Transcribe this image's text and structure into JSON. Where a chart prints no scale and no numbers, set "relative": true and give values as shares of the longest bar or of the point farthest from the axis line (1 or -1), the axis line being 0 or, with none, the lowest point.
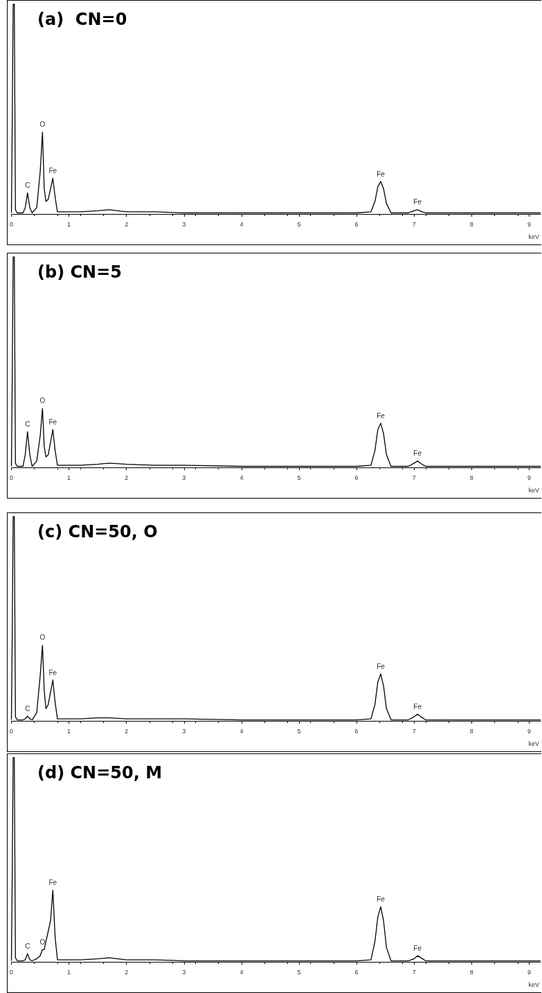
{
  "chart_data": [
    {
      "type": "line",
      "title": "(a)  CN=0",
      "xlabel": "keV",
      "relative": true,
      "color": "#000000",
      "grid": false,
      "marker": "none",
      "line_style": "solid",
      "xlim": [
        0,
        9.2
      ],
      "xticks": [
        0,
        1,
        2,
        3,
        4,
        5,
        6,
        7,
        8,
        9
      ],
      "x": [
        0,
        0.01,
        0.03,
        0.05,
        0.07,
        0.1,
        0.2,
        0.24,
        0.28,
        0.32,
        0.36,
        0.44,
        0.5,
        0.54,
        0.57,
        0.6,
        0.64,
        0.68,
        0.72,
        0.76,
        0.8,
        0.9,
        1.2,
        1.5,
        1.7,
        2,
        2.5,
        3,
        4,
        5,
        6,
        6.25,
        6.32,
        6.37,
        6.42,
        6.47,
        6.52,
        6.6,
        6.9,
        7.0,
        7.06,
        7.12,
        7.2,
        7.5,
        8,
        9,
        9.2
      ],
      "values": [
        0.005,
        0.3,
        1,
        1,
        0.02,
        0.005,
        0.005,
        0.03,
        0.1,
        0.03,
        0.005,
        0.03,
        0.2,
        0.39,
        0.12,
        0.06,
        0.07,
        0.12,
        0.17,
        0.08,
        0.01,
        0.01,
        0.01,
        0.015,
        0.02,
        0.01,
        0.01,
        0.005,
        0.005,
        0.005,
        0.005,
        0.01,
        0.06,
        0.13,
        0.155,
        0.12,
        0.05,
        0.005,
        0.005,
        0.015,
        0.02,
        0.012,
        0.005,
        0.005,
        0.005,
        0.005,
        0.005
      ],
      "annotations": [
        {
          "text": "C",
          "x": 0.28,
          "y": 0.1
        },
        {
          "text": "O",
          "x": 0.54,
          "y": 0.39
        },
        {
          "text": "Fe",
          "x": 0.72,
          "y": 0.17
        },
        {
          "text": "Fe",
          "x": 6.42,
          "y": 0.155
        },
        {
          "text": "Fe",
          "x": 7.06,
          "y": 0.02
        }
      ]
    },
    {
      "type": "line",
      "title": "(b) CN=5",
      "xlabel": "keV",
      "relative": true,
      "color": "#000000",
      "grid": false,
      "marker": "none",
      "line_style": "solid",
      "xlim": [
        0,
        9.2
      ],
      "xticks": [
        0,
        1,
        2,
        3,
        4,
        5,
        6,
        7,
        8,
        9
      ],
      "x": [
        0,
        0.01,
        0.03,
        0.05,
        0.07,
        0.1,
        0.2,
        0.24,
        0.28,
        0.32,
        0.36,
        0.44,
        0.5,
        0.54,
        0.57,
        0.6,
        0.64,
        0.68,
        0.72,
        0.76,
        0.8,
        0.9,
        1.2,
        1.5,
        1.7,
        2,
        2.5,
        3,
        4,
        5,
        6,
        6.25,
        6.32,
        6.37,
        6.42,
        6.47,
        6.52,
        6.6,
        6.9,
        7.0,
        7.06,
        7.12,
        7.2,
        7.5,
        8,
        9,
        9.2
      ],
      "values": [
        0.005,
        0.3,
        1,
        1,
        0.02,
        0.005,
        0.005,
        0.06,
        0.17,
        0.06,
        0.005,
        0.03,
        0.15,
        0.28,
        0.1,
        0.05,
        0.06,
        0.12,
        0.18,
        0.08,
        0.01,
        0.01,
        0.01,
        0.015,
        0.02,
        0.015,
        0.01,
        0.01,
        0.005,
        0.005,
        0.005,
        0.01,
        0.08,
        0.18,
        0.21,
        0.16,
        0.06,
        0.005,
        0.005,
        0.02,
        0.03,
        0.018,
        0.005,
        0.005,
        0.005,
        0.005,
        0.005
      ],
      "annotations": [
        {
          "text": "C",
          "x": 0.28,
          "y": 0.17
        },
        {
          "text": "O",
          "x": 0.54,
          "y": 0.28
        },
        {
          "text": "Fe",
          "x": 0.72,
          "y": 0.18
        },
        {
          "text": "Fe",
          "x": 6.42,
          "y": 0.21
        },
        {
          "text": "Fe",
          "x": 7.06,
          "y": 0.03
        }
      ]
    },
    {
      "type": "line",
      "title": "(c) CN=50, O",
      "xlabel": "keV",
      "relative": true,
      "color": "#000000",
      "grid": false,
      "marker": "none",
      "line_style": "solid",
      "xlim": [
        0,
        9.2
      ],
      "xticks": [
        0,
        1,
        2,
        3,
        4,
        5,
        6,
        7,
        8,
        9
      ],
      "x": [
        0,
        0.01,
        0.03,
        0.05,
        0.07,
        0.1,
        0.2,
        0.24,
        0.28,
        0.32,
        0.36,
        0.44,
        0.5,
        0.54,
        0.57,
        0.6,
        0.64,
        0.68,
        0.72,
        0.76,
        0.8,
        0.9,
        1.2,
        1.5,
        1.7,
        2,
        2.5,
        3,
        4,
        5,
        6,
        6.25,
        6.32,
        6.37,
        6.42,
        6.47,
        6.52,
        6.6,
        6.9,
        7.0,
        7.06,
        7.12,
        7.2,
        7.5,
        8,
        9,
        9.2
      ],
      "values": [
        0.005,
        0.3,
        1,
        1,
        0.02,
        0.005,
        0.005,
        0.01,
        0.023,
        0.01,
        0.005,
        0.04,
        0.22,
        0.37,
        0.15,
        0.06,
        0.08,
        0.14,
        0.2,
        0.09,
        0.01,
        0.01,
        0.01,
        0.015,
        0.015,
        0.01,
        0.01,
        0.01,
        0.005,
        0.005,
        0.005,
        0.01,
        0.08,
        0.19,
        0.23,
        0.17,
        0.06,
        0.005,
        0.005,
        0.02,
        0.033,
        0.02,
        0.005,
        0.005,
        0.005,
        0.005,
        0.005
      ],
      "annotations": [
        {
          "text": "C",
          "x": 0.28,
          "y": 0.023
        },
        {
          "text": "O",
          "x": 0.54,
          "y": 0.37
        },
        {
          "text": "Fe",
          "x": 0.72,
          "y": 0.2
        },
        {
          "text": "Fe",
          "x": 6.42,
          "y": 0.23
        },
        {
          "text": "Fe",
          "x": 7.06,
          "y": 0.033
        }
      ]
    },
    {
      "type": "line",
      "title": "(d) CN=50, M",
      "xlabel": "keV",
      "relative": true,
      "color": "#000000",
      "grid": false,
      "marker": "none",
      "line_style": "solid",
      "xlim": [
        0,
        9.2
      ],
      "xticks": [
        0,
        1,
        2,
        3,
        4,
        5,
        6,
        7,
        8,
        9
      ],
      "x": [
        0,
        0.01,
        0.03,
        0.05,
        0.07,
        0.1,
        0.2,
        0.24,
        0.28,
        0.32,
        0.36,
        0.44,
        0.5,
        0.54,
        0.57,
        0.6,
        0.64,
        0.68,
        0.72,
        0.76,
        0.8,
        0.9,
        1.2,
        1.5,
        1.7,
        2,
        2.5,
        3,
        4,
        5,
        6,
        6.25,
        6.32,
        6.37,
        6.42,
        6.47,
        6.52,
        6.6,
        6.9,
        7.0,
        7.06,
        7.12,
        7.2,
        7.5,
        8,
        9,
        9.2
      ],
      "values": [
        0.005,
        0.3,
        1,
        1,
        0.02,
        0.005,
        0.005,
        0.01,
        0.04,
        0.01,
        0.005,
        0.015,
        0.03,
        0.06,
        0.06,
        0.1,
        0.15,
        0.2,
        0.35,
        0.12,
        0.01,
        0.01,
        0.01,
        0.015,
        0.02,
        0.01,
        0.01,
        0.005,
        0.005,
        0.005,
        0.005,
        0.01,
        0.1,
        0.22,
        0.27,
        0.2,
        0.07,
        0.005,
        0.005,
        0.015,
        0.03,
        0.02,
        0.005,
        0.005,
        0.005,
        0.005,
        0.005
      ],
      "annotations": [
        {
          "text": "C",
          "x": 0.28,
          "y": 0.04
        },
        {
          "text": "O",
          "x": 0.54,
          "y": 0.06
        },
        {
          "text": "Fe",
          "x": 0.72,
          "y": 0.35
        },
        {
          "text": "Fe",
          "x": 6.42,
          "y": 0.27
        },
        {
          "text": "Fe",
          "x": 7.06,
          "y": 0.03
        }
      ]
    }
  ]
}
